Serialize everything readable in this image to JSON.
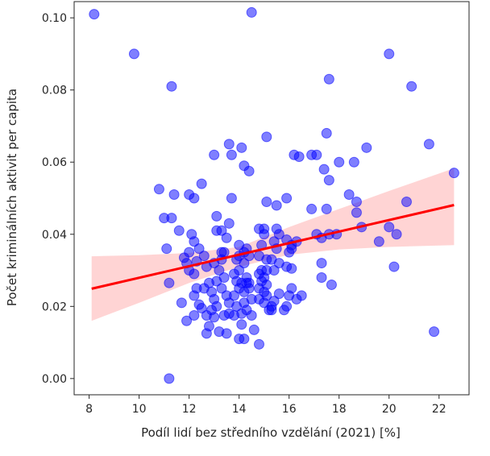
{
  "chart_data": {
    "type": "scatter",
    "title": "",
    "xlabel": "Podíl lidí bez středního vzdělání (2021) [%]",
    "ylabel": "Počet kriminálních aktivit per capita",
    "xlim": [
      7.4,
      23.2
    ],
    "ylim": [
      -0.0045,
      0.1045
    ],
    "xticks": [
      8,
      10,
      12,
      14,
      16,
      18,
      20,
      22
    ],
    "yticks": [
      0.0,
      0.02,
      0.04,
      0.06,
      0.08,
      0.1
    ],
    "ytick_labels": [
      "0.00",
      "0.02",
      "0.04",
      "0.06",
      "0.08",
      "0.10"
    ],
    "grid": false,
    "points": [
      [
        8.2,
        0.101
      ],
      [
        9.8,
        0.09
      ],
      [
        11.3,
        0.081
      ],
      [
        14.5,
        0.1015
      ],
      [
        20.0,
        0.09
      ],
      [
        20.9,
        0.081
      ],
      [
        17.6,
        0.083
      ],
      [
        21.6,
        0.065
      ],
      [
        22.6,
        0.057
      ],
      [
        19.1,
        0.064
      ],
      [
        17.5,
        0.068
      ],
      [
        15.1,
        0.067
      ],
      [
        10.8,
        0.0525
      ],
      [
        11.0,
        0.0445
      ],
      [
        11.1,
        0.036
      ],
      [
        11.4,
        0.051
      ],
      [
        11.3,
        0.0445
      ],
      [
        11.2,
        0.0265
      ],
      [
        11.2,
        0.0
      ],
      [
        11.6,
        0.041
      ],
      [
        11.7,
        0.021
      ],
      [
        12.0,
        0.051
      ],
      [
        12.2,
        0.05
      ],
      [
        12.5,
        0.054
      ],
      [
        12.1,
        0.04
      ],
      [
        12.2,
        0.038
      ],
      [
        12.4,
        0.036
      ],
      [
        12.0,
        0.035
      ],
      [
        11.8,
        0.0335
      ],
      [
        11.9,
        0.032
      ],
      [
        12.0,
        0.03
      ],
      [
        12.3,
        0.0325
      ],
      [
        12.6,
        0.034
      ],
      [
        12.7,
        0.031
      ],
      [
        12.2,
        0.029
      ],
      [
        12.3,
        0.025
      ],
      [
        12.6,
        0.025
      ],
      [
        12.2,
        0.023
      ],
      [
        12.4,
        0.0205
      ],
      [
        12.5,
        0.0195
      ],
      [
        12.2,
        0.0175
      ],
      [
        11.9,
        0.016
      ],
      [
        12.7,
        0.0175
      ],
      [
        12.8,
        0.0145
      ],
      [
        12.7,
        0.0125
      ],
      [
        13.1,
        0.041
      ],
      [
        13.1,
        0.045
      ],
      [
        13.0,
        0.062
      ],
      [
        13.6,
        0.065
      ],
      [
        13.7,
        0.062
      ],
      [
        14.1,
        0.064
      ],
      [
        14.2,
        0.059
      ],
      [
        14.4,
        0.0575
      ],
      [
        13.7,
        0.05
      ],
      [
        13.6,
        0.043
      ],
      [
        13.3,
        0.041
      ],
      [
        13.5,
        0.039
      ],
      [
        13.4,
        0.035
      ],
      [
        13.3,
        0.035
      ],
      [
        13.3,
        0.033
      ],
      [
        13.0,
        0.032
      ],
      [
        13.2,
        0.03
      ],
      [
        13.4,
        0.028
      ],
      [
        13.1,
        0.027
      ],
      [
        12.8,
        0.0265
      ],
      [
        13.3,
        0.025
      ],
      [
        12.9,
        0.024
      ],
      [
        13.5,
        0.023
      ],
      [
        13.0,
        0.022
      ],
      [
        13.6,
        0.021
      ],
      [
        13.1,
        0.02
      ],
      [
        12.9,
        0.019
      ],
      [
        13.6,
        0.018
      ],
      [
        13.0,
        0.017
      ],
      [
        13.4,
        0.0175
      ],
      [
        13.8,
        0.0175
      ],
      [
        13.2,
        0.013
      ],
      [
        13.5,
        0.0125
      ],
      [
        14.0,
        0.011
      ],
      [
        14.2,
        0.011
      ],
      [
        14.6,
        0.0135
      ],
      [
        14.8,
        0.0095
      ],
      [
        14.0,
        0.037
      ],
      [
        14.2,
        0.035
      ],
      [
        14.3,
        0.036
      ],
      [
        14.0,
        0.034
      ],
      [
        13.9,
        0.033
      ],
      [
        14.4,
        0.034
      ],
      [
        14.2,
        0.032
      ],
      [
        14.0,
        0.03
      ],
      [
        13.8,
        0.029
      ],
      [
        14.3,
        0.028
      ],
      [
        13.9,
        0.027
      ],
      [
        14.3,
        0.0265
      ],
      [
        14.1,
        0.0265
      ],
      [
        14.4,
        0.0265
      ],
      [
        14.0,
        0.025
      ],
      [
        14.4,
        0.025
      ],
      [
        14.2,
        0.024
      ],
      [
        13.8,
        0.023
      ],
      [
        14.5,
        0.022
      ],
      [
        14.2,
        0.021
      ],
      [
        13.9,
        0.02
      ],
      [
        14.3,
        0.019
      ],
      [
        14.1,
        0.018
      ],
      [
        14.5,
        0.0175
      ],
      [
        14.1,
        0.015
      ],
      [
        14.8,
        0.0415
      ],
      [
        15.0,
        0.0415
      ],
      [
        15.0,
        0.04
      ],
      [
        14.9,
        0.037
      ],
      [
        14.8,
        0.034
      ],
      [
        15.1,
        0.033
      ],
      [
        15.1,
        0.03
      ],
      [
        14.9,
        0.03
      ],
      [
        14.8,
        0.029
      ],
      [
        15.0,
        0.028
      ],
      [
        14.9,
        0.027
      ],
      [
        15.1,
        0.026
      ],
      [
        14.8,
        0.025
      ],
      [
        15.0,
        0.024
      ],
      [
        15.1,
        0.023
      ],
      [
        14.8,
        0.022
      ],
      [
        15.0,
        0.021
      ],
      [
        15.3,
        0.02
      ],
      [
        15.2,
        0.019
      ],
      [
        15.5,
        0.0415
      ],
      [
        15.6,
        0.04
      ],
      [
        15.4,
        0.038
      ],
      [
        15.5,
        0.036
      ],
      [
        15.3,
        0.033
      ],
      [
        15.6,
        0.032
      ],
      [
        15.4,
        0.03
      ],
      [
        15.6,
        0.0235
      ],
      [
        15.4,
        0.0215
      ],
      [
        15.3,
        0.019
      ],
      [
        15.1,
        0.049
      ],
      [
        15.5,
        0.048
      ],
      [
        15.9,
        0.05
      ],
      [
        15.9,
        0.0385
      ],
      [
        16.1,
        0.037
      ],
      [
        16.0,
        0.035
      ],
      [
        15.9,
        0.031
      ],
      [
        16.1,
        0.0305
      ],
      [
        16.1,
        0.025
      ],
      [
        16.0,
        0.023
      ],
      [
        15.8,
        0.019
      ],
      [
        16.2,
        0.062
      ],
      [
        16.4,
        0.0615
      ],
      [
        16.1,
        0.036
      ],
      [
        16.3,
        0.038
      ],
      [
        16.5,
        0.023
      ],
      [
        16.3,
        0.022
      ],
      [
        15.9,
        0.02
      ],
      [
        16.9,
        0.062
      ],
      [
        17.1,
        0.062
      ],
      [
        17.4,
        0.058
      ],
      [
        17.6,
        0.055
      ],
      [
        18.0,
        0.06
      ],
      [
        16.9,
        0.047
      ],
      [
        17.5,
        0.047
      ],
      [
        17.1,
        0.04
      ],
      [
        17.3,
        0.039
      ],
      [
        17.6,
        0.04
      ],
      [
        17.9,
        0.04
      ],
      [
        17.3,
        0.032
      ],
      [
        17.3,
        0.028
      ],
      [
        17.7,
        0.026
      ],
      [
        18.4,
        0.051
      ],
      [
        18.7,
        0.049
      ],
      [
        18.7,
        0.046
      ],
      [
        18.9,
        0.042
      ],
      [
        19.6,
        0.038
      ],
      [
        20.0,
        0.042
      ],
      [
        20.3,
        0.04
      ],
      [
        20.2,
        0.031
      ],
      [
        20.7,
        0.049
      ],
      [
        21.8,
        0.013
      ],
      [
        18.6,
        0.06
      ]
    ],
    "regression": {
      "x": [
        8.1,
        22.6
      ],
      "y": [
        0.0249,
        0.0481
      ],
      "ci_x": [
        8.1,
        10.0,
        12.0,
        14.0,
        16.0,
        18.0,
        20.0,
        22.6
      ],
      "ci_upper": [
        0.0339,
        0.0342,
        0.0348,
        0.0365,
        0.042,
        0.047,
        0.052,
        0.0583
      ],
      "ci_lower": [
        0.016,
        0.021,
        0.0265,
        0.031,
        0.0343,
        0.0358,
        0.0365,
        0.037
      ]
    },
    "colors": {
      "points": "#0000ff",
      "regression_line": "#ff0000",
      "confidence_band": "#ffcccc",
      "axes": "#262626"
    }
  }
}
